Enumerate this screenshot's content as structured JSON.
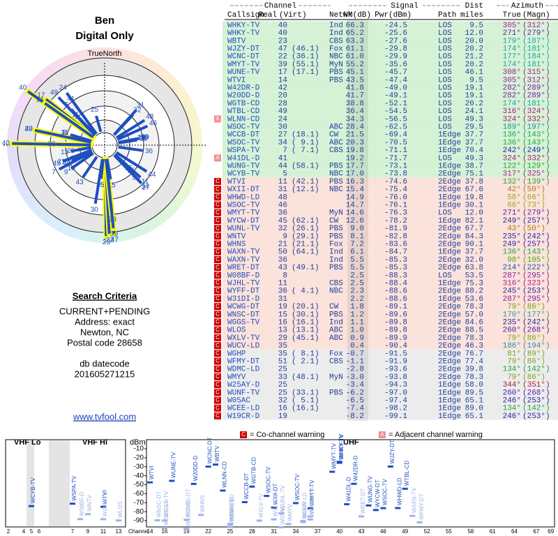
{
  "header": {
    "name": "Ben",
    "mode": "Digital Only"
  },
  "polar": {
    "north_label": "TrueNorth",
    "north": "N"
  },
  "criteria": {
    "title": "Search Criteria",
    "lines": [
      "CURRENT+PENDING",
      "Address: exact",
      "Newton, NC",
      "Postal code 28658"
    ],
    "datecode_label": "db datecode",
    "datecode": "201605271215",
    "link": "www.tvfool.com"
  },
  "table": {
    "groups": [
      "Channel",
      "Signal",
      "Azimuth"
    ],
    "dist_head": "Dist",
    "columns": [
      "Callsign",
      "Real",
      "(Virt)",
      "Netwk",
      "NM(dB)",
      "Pwr(dBm)",
      "Path",
      "miles",
      "True",
      "(Magn)"
    ],
    "rows": [
      [
        "WHKY-TV",
        "40",
        null,
        "Ind",
        "66.3",
        "-24.5",
        "LOS",
        "9.5",
        "305°",
        "(312°)",
        null
      ],
      [
        "WHKY-TV",
        "40",
        null,
        "Ind",
        "65.2",
        "-25.6",
        "LOS",
        "12.0",
        "271°",
        "(279°)",
        null
      ],
      [
        "WBTV",
        "23",
        null,
        "CBS",
        "63.3",
        "-27.6",
        "LOS",
        "20.0",
        "179°",
        "(187°)",
        null
      ],
      [
        "WJZY-DT",
        "47",
        "(46.1)",
        "Fox",
        "61.1",
        "-29.8",
        "LOS",
        "20.2",
        "174°",
        "(181°)",
        null
      ],
      [
        "WCNC-DT",
        "22",
        "(36.1)",
        "NBC",
        "61.0",
        "-29.9",
        "LOS",
        "21.2",
        "177°",
        "(184°)",
        null
      ],
      [
        "WMYT-TV",
        "39",
        "(55.1)",
        "MyN",
        "55.2",
        "-35.6",
        "LOS",
        "20.2",
        "174°",
        "(181°)",
        null
      ],
      [
        "WUNE-TV",
        "17",
        "(17.1)",
        "PBS",
        "45.1",
        "-45.7",
        "LOS",
        "46.1",
        "308°",
        "(315°)",
        null
      ],
      [
        "WTVI",
        "14",
        null,
        "PBS",
        "43.5",
        "-47.4",
        "LOS",
        "9.5",
        "305°",
        "(312°)",
        null
      ],
      [
        "W42DR-D",
        "42",
        null,
        null,
        "41.8",
        "-49.0",
        "LOS",
        "19.1",
        "282°",
        "(289°)",
        null
      ],
      [
        "W20DD-D",
        "20",
        null,
        null,
        "41.7",
        "-49.1",
        "LOS",
        "19.1",
        "282°",
        "(289°)",
        null
      ],
      [
        "WGTB-CD",
        "28",
        null,
        null,
        "38.8",
        "-52.1",
        "LOS",
        "20.2",
        "174°",
        "(181°)",
        null
      ],
      [
        "WTBL-CD",
        "49",
        null,
        null,
        "36.4",
        "-54.5",
        "LOS",
        "24.1",
        "316°",
        "(324°)",
        null
      ],
      [
        "WLNN-CD",
        "24",
        null,
        null,
        "34.3",
        "-56.5",
        "LOS",
        "49.3",
        "324°",
        "(332°)",
        "A"
      ],
      [
        "WSOC-TV",
        "30",
        null,
        "ABC",
        "28.4",
        "-62.5",
        "LOS",
        "29.5",
        "189°",
        "(197°)",
        null
      ],
      [
        "WCCB-DT",
        "27",
        "(18.1)",
        "CW",
        "21.5",
        "-69.4",
        "1Edge",
        "37.7",
        "136°",
        "(143°)",
        null
      ],
      [
        "WSOC-TV",
        "34",
        "( 9.1)",
        "ABC",
        "20.3",
        "-70.5",
        "1Edge",
        "37.7",
        "136°",
        "(143°)",
        null
      ],
      [
        "WSPA-TV",
        "7",
        "( 7.1)",
        "CBS",
        "19.8",
        "-71.1",
        "1Edge",
        "70.4",
        "242°",
        "(249°)",
        null
      ],
      [
        "W41DL-D",
        "41",
        null,
        null,
        "19.2",
        "-71.7",
        "LOS",
        "49.3",
        "324°",
        "(332°)",
        "A"
      ],
      [
        "WUNG-TV",
        "44",
        "(58.1)",
        "PBS",
        "17.7",
        "-73.1",
        "1Edge",
        "38.7",
        "122°",
        "(129°)",
        null
      ],
      [
        "WCYB-TV",
        "5",
        null,
        "NBC",
        "17.0",
        "-73.8",
        "2Edge",
        "75.1",
        "317°",
        "(325°)",
        null
      ],
      [
        "WTVI",
        "11",
        "(42.1)",
        "PBS",
        "16.3",
        "-74.6",
        "2Edge",
        "37.8",
        "132°",
        "(139°)",
        "C"
      ],
      [
        "WXII-DT",
        "31",
        "(12.1)",
        "NBC",
        "15.4",
        "-75.4",
        "2Edge",
        "67.6",
        "42°",
        "(50°)",
        "C"
      ],
      [
        "WHWD-LD",
        "48",
        null,
        null,
        "14.9",
        "-76.0",
        "1Edge",
        "19.8",
        "58°",
        "(66°)",
        "C"
      ],
      [
        "WSOC-TV",
        "46",
        null,
        null,
        "14.7",
        "-76.1",
        "1Edge",
        "30.1",
        "66°",
        "(73°)",
        "C"
      ],
      [
        "WMYT-TV",
        "36",
        null,
        "MyN",
        "14.6",
        "-76.3",
        "LOS",
        "12.0",
        "271°",
        "(279°)",
        "C"
      ],
      [
        "WYCW-DT",
        "45",
        "(62.1)",
        "CW",
        "12.6",
        "-78.2",
        "1Edge",
        "82.1",
        "249°",
        "(257°)",
        "C"
      ],
      [
        "WUNL-TV",
        "32",
        "(26.1)",
        "PBS",
        "9.0",
        "-81.9",
        "2Edge",
        "67.7",
        "43°",
        "(50°)",
        "C"
      ],
      [
        "WNTV",
        "9",
        "(29.1)",
        "PBS",
        "8.1",
        "-82.8",
        "2Edge",
        "84.3",
        "235°",
        "(242°)",
        "C"
      ],
      [
        "WHNS",
        "21",
        "(21.1)",
        "Fox",
        "7.2",
        "-83.6",
        "2Edge",
        "90.1",
        "249°",
        "(257°)",
        "C"
      ],
      [
        "WAXN-TV",
        "50",
        "(64.1)",
        "Ind",
        "6.1",
        "-84.7",
        "1Edge",
        "37.7",
        "136°",
        "(143°)",
        "C"
      ],
      [
        "WAXN-TV",
        "36",
        null,
        "Ind",
        "5.5",
        "-85.3",
        "2Edge",
        "32.0",
        "98°",
        "(105°)",
        "C"
      ],
      [
        "WRET-DT",
        "43",
        "(49.1)",
        "PBS",
        "5.5",
        "-85.3",
        "2Edge",
        "63.8",
        "214°",
        "(222°)",
        "C"
      ],
      [
        "W08BF-D",
        "8",
        null,
        null,
        "2.5",
        "-88.3",
        "LOS",
        "53.5",
        "287°",
        "(295°)",
        "C"
      ],
      [
        "WJHL-TV",
        "11",
        null,
        "CBS",
        "2.5",
        "-88.4",
        "1Edge",
        "75.3",
        "316°",
        "(323°)",
        "C"
      ],
      [
        "WYFF-DT",
        "36",
        "( 4.1)",
        "NBC",
        "2.3",
        "-88.6",
        "2Edge",
        "88.2",
        "245°",
        "(253°)",
        "C"
      ],
      [
        "W31DI-D",
        "31",
        null,
        null,
        "2.2",
        "-88.6",
        "1Edge",
        "53.6",
        "287°",
        "(295°)",
        "C"
      ],
      [
        "WCWG-DT",
        "19",
        "(20.1)",
        "CW",
        "1.8",
        "-89.1",
        "2Edge",
        "78.3",
        "79°",
        "(86°)",
        "C"
      ],
      [
        "WNSC-DT",
        "15",
        "(30.1)",
        "PBS",
        "1.2",
        "-89.6",
        "2Edge",
        "57.0",
        "170°",
        "(177°)",
        "C"
      ],
      [
        "WGGS-TV",
        "16",
        "(16.1)",
        "Ind",
        "1.1",
        "-89.8",
        "2Edge",
        "84.6",
        "235°",
        "(242°)",
        "C"
      ],
      [
        "WLOS",
        "13",
        "(13.1)",
        "ABC",
        "1.0",
        "-89.8",
        "2Edge",
        "88.5",
        "260°",
        "(268°)",
        "C"
      ],
      [
        "WXLV-TV",
        "29",
        "(45.1)",
        "ABC",
        "0.9",
        "-89.9",
        "2Edge",
        "78.3",
        "79°",
        "(86°)",
        "C"
      ],
      [
        "WUCV-LD",
        "35",
        null,
        null,
        "0.4",
        "-90.4",
        "2Edge",
        "46.3",
        "186°",
        "(194°)",
        "C"
      ],
      [
        "WGHP",
        "35",
        "( 8.1)",
        "Fox",
        "-0.7",
        "-91.5",
        "2Edge",
        "76.7",
        "81°",
        "(89°)",
        "C"
      ],
      [
        "WFMY-DT",
        "51",
        "( 2.1)",
        "CBS",
        "-1.1",
        "-91.9",
        "2Edge",
        "77.4",
        "79°",
        "(86°)",
        "C"
      ],
      [
        "WDMC-LD",
        "25",
        null,
        null,
        "-2.8",
        "-93.6",
        "2Edge",
        "39.8",
        "134°",
        "(142°)",
        "C"
      ],
      [
        "WMYV",
        "33",
        "(48.1)",
        "MyN",
        "-3.0",
        "-93.8",
        "2Edge",
        "78.3",
        "79°",
        "(86°)",
        "C"
      ],
      [
        "W25AY-D",
        "25",
        null,
        null,
        "-3.4",
        "-94.3",
        "1Edge",
        "58.0",
        "344°",
        "(351°)",
        "C"
      ],
      [
        "WUNF-TV",
        "25",
        "(33.1)",
        "PBS",
        "-6.2",
        "-97.0",
        "1Edge",
        "89.5",
        "260°",
        "(268°)",
        "C"
      ],
      [
        "W05AC",
        "32",
        "( 5.1)",
        null,
        "-6.5",
        "-97.4",
        "1Edge",
        "65.1",
        "246°",
        "(253°)",
        "C"
      ],
      [
        "WCEE-LD",
        "16",
        "(16.1)",
        null,
        "-7.4",
        "-98.2",
        "1Edge",
        "89.0",
        "134°",
        "(142°)",
        "C"
      ],
      [
        "W19CR-D",
        "19",
        null,
        null,
        "-8.2",
        "-99.1",
        "1Edge",
        "65.1",
        "246°",
        "(253°)",
        "C"
      ]
    ]
  },
  "spectrum": {
    "vhf_lo": "VHF Lo",
    "vhf_hi": "VHF Hi",
    "uhf": "UHF",
    "unit": "dBm",
    "channel_label": "Channel",
    "yticks": [
      -10,
      -20,
      -30,
      -40,
      -50,
      -60,
      -70,
      -80,
      -90
    ],
    "vhf_ticks": [
      2,
      4,
      5,
      6,
      7,
      9,
      11,
      13
    ],
    "uhf_ticks": [
      14,
      16,
      19,
      22,
      25,
      28,
      31,
      34,
      37,
      40,
      43,
      46,
      49,
      52,
      55,
      58,
      61,
      64,
      67,
      69
    ],
    "co": "C",
    "co_label": "= Co-channel warning",
    "adj": "A",
    "adj_label": "= Adjacent channel warning"
  }
}
